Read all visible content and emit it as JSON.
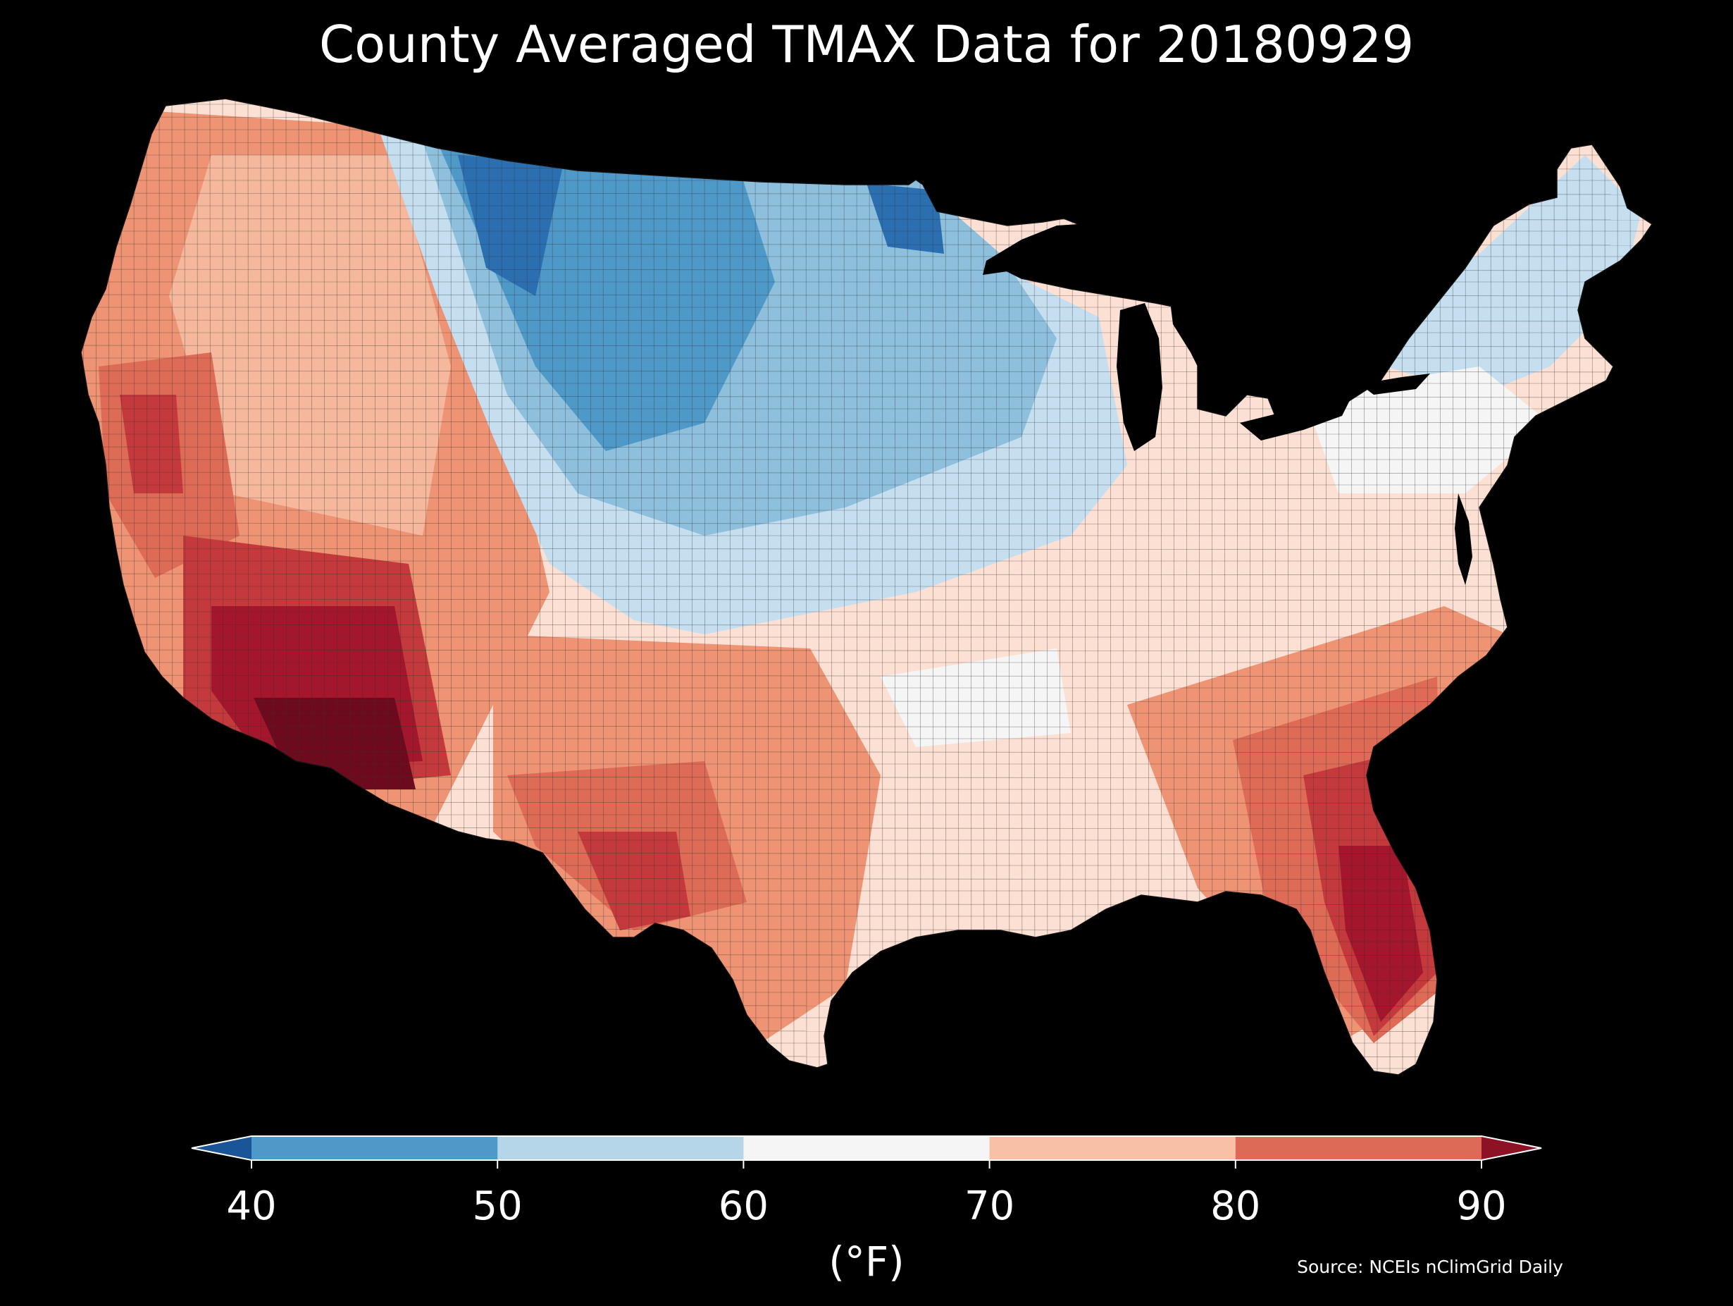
{
  "title": "County Averaged TMAX Data for 20180929",
  "source": "Source: NCEIs nClimGrid Daily",
  "colorbar": {
    "unit": "(°F)",
    "ticks": [
      "40",
      "50",
      "60",
      "70",
      "80",
      "90"
    ],
    "bins": [
      {
        "range": "<40",
        "color": "#1a5598"
      },
      {
        "range": "40-50",
        "color": "#4e99c8"
      },
      {
        "range": "50-60",
        "color": "#b5d6e8"
      },
      {
        "range": "60-70",
        "color": "#f5f5f5"
      },
      {
        "range": "70-80",
        "color": "#f8c1a6"
      },
      {
        "range": "80-90",
        "color": "#dd6a56"
      },
      {
        "range": ">90",
        "color": "#8e1226"
      }
    ],
    "extend": "both"
  },
  "map_data": {
    "region": "Contiguous United States",
    "unit": "county",
    "variable": "TMAX",
    "background": "#000000",
    "border_color": "#1a1a1a"
  }
}
